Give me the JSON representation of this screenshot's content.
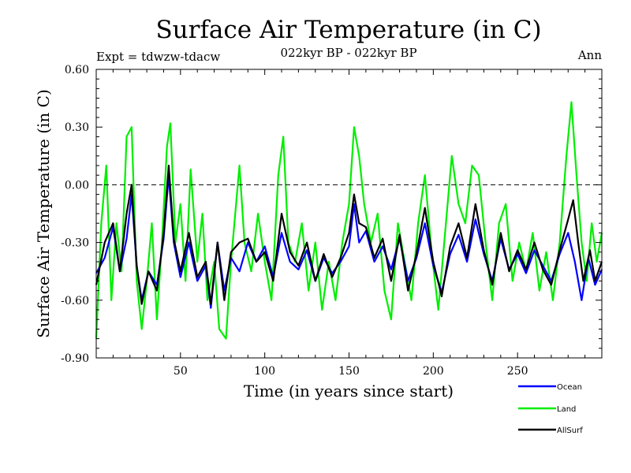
{
  "chart_data": {
    "type": "line",
    "title": "Surface Air Temperature (in C)",
    "subtitle": "022kyr BP - 022kyr BP",
    "left_label": "Expt = tdwzw-tdacw",
    "right_label": "Ann",
    "xlabel": "Time (in years since start)",
    "ylabel": "Surface Air Temperature (in C)",
    "xlim": [
      0,
      300
    ],
    "ylim": [
      -0.9,
      0.6
    ],
    "x_ticks": [
      50,
      100,
      150,
      200,
      250
    ],
    "x_tick_labels": [
      "50",
      "100",
      "150",
      "200",
      "250"
    ],
    "y_ticks": [
      -0.9,
      -0.6,
      -0.3,
      0.0,
      0.3,
      0.6
    ],
    "y_tick_labels": [
      "-0.90",
      "-0.60",
      "-0.30",
      "0.00",
      "0.30",
      "0.60"
    ],
    "zero_line": true,
    "grid": false,
    "legend_position": "bottom-right",
    "series": [
      {
        "name": "Ocean",
        "color": "#0000ff",
        "keypoints": [
          [
            0,
            -0.46
          ],
          [
            5,
            -0.38
          ],
          [
            10,
            -0.22
          ],
          [
            14,
            -0.45
          ],
          [
            18,
            -0.28
          ],
          [
            21,
            -0.05
          ],
          [
            24,
            -0.42
          ],
          [
            27,
            -0.6
          ],
          [
            31,
            -0.45
          ],
          [
            36,
            -0.52
          ],
          [
            40,
            -0.28
          ],
          [
            43,
            0.05
          ],
          [
            46,
            -0.3
          ],
          [
            50,
            -0.48
          ],
          [
            55,
            -0.3
          ],
          [
            60,
            -0.5
          ],
          [
            65,
            -0.42
          ],
          [
            68,
            -0.64
          ],
          [
            72,
            -0.3
          ],
          [
            76,
            -0.55
          ],
          [
            80,
            -0.38
          ],
          [
            85,
            -0.45
          ],
          [
            90,
            -0.3
          ],
          [
            95,
            -0.4
          ],
          [
            100,
            -0.32
          ],
          [
            105,
            -0.48
          ],
          [
            110,
            -0.25
          ],
          [
            115,
            -0.4
          ],
          [
            120,
            -0.44
          ],
          [
            125,
            -0.34
          ],
          [
            130,
            -0.5
          ],
          [
            135,
            -0.38
          ],
          [
            140,
            -0.46
          ],
          [
            145,
            -0.4
          ],
          [
            150,
            -0.32
          ],
          [
            153,
            -0.1
          ],
          [
            156,
            -0.3
          ],
          [
            160,
            -0.24
          ],
          [
            165,
            -0.4
          ],
          [
            170,
            -0.32
          ],
          [
            175,
            -0.44
          ],
          [
            180,
            -0.28
          ],
          [
            185,
            -0.5
          ],
          [
            190,
            -0.38
          ],
          [
            195,
            -0.2
          ],
          [
            200,
            -0.42
          ],
          [
            205,
            -0.56
          ],
          [
            210,
            -0.36
          ],
          [
            215,
            -0.26
          ],
          [
            220,
            -0.4
          ],
          [
            225,
            -0.18
          ],
          [
            230,
            -0.36
          ],
          [
            235,
            -0.5
          ],
          [
            240,
            -0.28
          ],
          [
            245,
            -0.44
          ],
          [
            250,
            -0.36
          ],
          [
            255,
            -0.46
          ],
          [
            260,
            -0.34
          ],
          [
            265,
            -0.42
          ],
          [
            270,
            -0.5
          ],
          [
            275,
            -0.36
          ],
          [
            280,
            -0.25
          ],
          [
            284,
            -0.4
          ],
          [
            288,
            -0.6
          ],
          [
            292,
            -0.38
          ],
          [
            296,
            -0.52
          ],
          [
            300,
            -0.44
          ]
        ]
      },
      {
        "name": "Land",
        "color": "#00ee00",
        "keypoints": [
          [
            0,
            -0.8
          ],
          [
            3,
            -0.2
          ],
          [
            6,
            0.1
          ],
          [
            9,
            -0.6
          ],
          [
            12,
            -0.2
          ],
          [
            15,
            -0.45
          ],
          [
            18,
            0.25
          ],
          [
            21,
            0.3
          ],
          [
            24,
            -0.5
          ],
          [
            27,
            -0.75
          ],
          [
            30,
            -0.5
          ],
          [
            33,
            -0.2
          ],
          [
            36,
            -0.7
          ],
          [
            39,
            -0.3
          ],
          [
            42,
            0.2
          ],
          [
            44,
            0.32
          ],
          [
            47,
            -0.3
          ],
          [
            50,
            -0.1
          ],
          [
            53,
            -0.5
          ],
          [
            56,
            0.08
          ],
          [
            60,
            -0.4
          ],
          [
            63,
            -0.15
          ],
          [
            66,
            -0.6
          ],
          [
            70,
            -0.4
          ],
          [
            73,
            -0.75
          ],
          [
            77,
            -0.8
          ],
          [
            80,
            -0.4
          ],
          [
            85,
            0.1
          ],
          [
            88,
            -0.3
          ],
          [
            92,
            -0.45
          ],
          [
            96,
            -0.15
          ],
          [
            100,
            -0.4
          ],
          [
            104,
            -0.6
          ],
          [
            108,
            0.05
          ],
          [
            111,
            0.25
          ],
          [
            114,
            -0.3
          ],
          [
            118,
            -0.4
          ],
          [
            122,
            -0.2
          ],
          [
            126,
            -0.55
          ],
          [
            130,
            -0.3
          ],
          [
            134,
            -0.65
          ],
          [
            138,
            -0.4
          ],
          [
            142,
            -0.6
          ],
          [
            146,
            -0.3
          ],
          [
            150,
            -0.1
          ],
          [
            153,
            0.3
          ],
          [
            156,
            0.15
          ],
          [
            159,
            -0.1
          ],
          [
            163,
            -0.3
          ],
          [
            167,
            -0.15
          ],
          [
            171,
            -0.55
          ],
          [
            175,
            -0.7
          ],
          [
            179,
            -0.2
          ],
          [
            183,
            -0.4
          ],
          [
            187,
            -0.6
          ],
          [
            191,
            -0.2
          ],
          [
            195,
            0.05
          ],
          [
            199,
            -0.35
          ],
          [
            203,
            -0.65
          ],
          [
            207,
            -0.25
          ],
          [
            211,
            0.15
          ],
          [
            215,
            -0.1
          ],
          [
            219,
            -0.2
          ],
          [
            223,
            0.1
          ],
          [
            227,
            0.05
          ],
          [
            231,
            -0.3
          ],
          [
            235,
            -0.6
          ],
          [
            239,
            -0.2
          ],
          [
            243,
            -0.1
          ],
          [
            247,
            -0.5
          ],
          [
            251,
            -0.3
          ],
          [
            255,
            -0.45
          ],
          [
            259,
            -0.25
          ],
          [
            263,
            -0.55
          ],
          [
            267,
            -0.35
          ],
          [
            271,
            -0.6
          ],
          [
            275,
            -0.3
          ],
          [
            279,
            0.15
          ],
          [
            282,
            0.43
          ],
          [
            285,
            0.05
          ],
          [
            288,
            -0.3
          ],
          [
            291,
            -0.5
          ],
          [
            294,
            -0.2
          ],
          [
            297,
            -0.4
          ],
          [
            300,
            -0.25
          ]
        ]
      },
      {
        "name": "AllSurf",
        "color": "#000000",
        "keypoints": [
          [
            0,
            -0.52
          ],
          [
            5,
            -0.3
          ],
          [
            10,
            -0.2
          ],
          [
            14,
            -0.45
          ],
          [
            18,
            -0.15
          ],
          [
            21,
            0.0
          ],
          [
            24,
            -0.42
          ],
          [
            27,
            -0.62
          ],
          [
            31,
            -0.45
          ],
          [
            36,
            -0.55
          ],
          [
            40,
            -0.25
          ],
          [
            43,
            0.1
          ],
          [
            46,
            -0.28
          ],
          [
            50,
            -0.45
          ],
          [
            55,
            -0.25
          ],
          [
            60,
            -0.48
          ],
          [
            65,
            -0.4
          ],
          [
            68,
            -0.62
          ],
          [
            72,
            -0.3
          ],
          [
            76,
            -0.6
          ],
          [
            80,
            -0.35
          ],
          [
            85,
            -0.3
          ],
          [
            90,
            -0.28
          ],
          [
            95,
            -0.4
          ],
          [
            100,
            -0.35
          ],
          [
            105,
            -0.5
          ],
          [
            110,
            -0.15
          ],
          [
            115,
            -0.35
          ],
          [
            120,
            -0.42
          ],
          [
            125,
            -0.3
          ],
          [
            130,
            -0.5
          ],
          [
            135,
            -0.36
          ],
          [
            140,
            -0.48
          ],
          [
            145,
            -0.38
          ],
          [
            150,
            -0.25
          ],
          [
            153,
            -0.05
          ],
          [
            156,
            -0.2
          ],
          [
            160,
            -0.22
          ],
          [
            165,
            -0.38
          ],
          [
            170,
            -0.28
          ],
          [
            175,
            -0.5
          ],
          [
            180,
            -0.26
          ],
          [
            185,
            -0.55
          ],
          [
            190,
            -0.36
          ],
          [
            195,
            -0.12
          ],
          [
            200,
            -0.4
          ],
          [
            205,
            -0.58
          ],
          [
            210,
            -0.32
          ],
          [
            215,
            -0.2
          ],
          [
            220,
            -0.38
          ],
          [
            225,
            -0.1
          ],
          [
            230,
            -0.34
          ],
          [
            235,
            -0.52
          ],
          [
            240,
            -0.25
          ],
          [
            245,
            -0.45
          ],
          [
            250,
            -0.34
          ],
          [
            255,
            -0.44
          ],
          [
            260,
            -0.3
          ],
          [
            265,
            -0.44
          ],
          [
            270,
            -0.52
          ],
          [
            275,
            -0.34
          ],
          [
            280,
            -0.18
          ],
          [
            283,
            -0.08
          ],
          [
            286,
            -0.3
          ],
          [
            289,
            -0.5
          ],
          [
            293,
            -0.34
          ],
          [
            296,
            -0.5
          ],
          [
            300,
            -0.4
          ]
        ]
      }
    ]
  }
}
